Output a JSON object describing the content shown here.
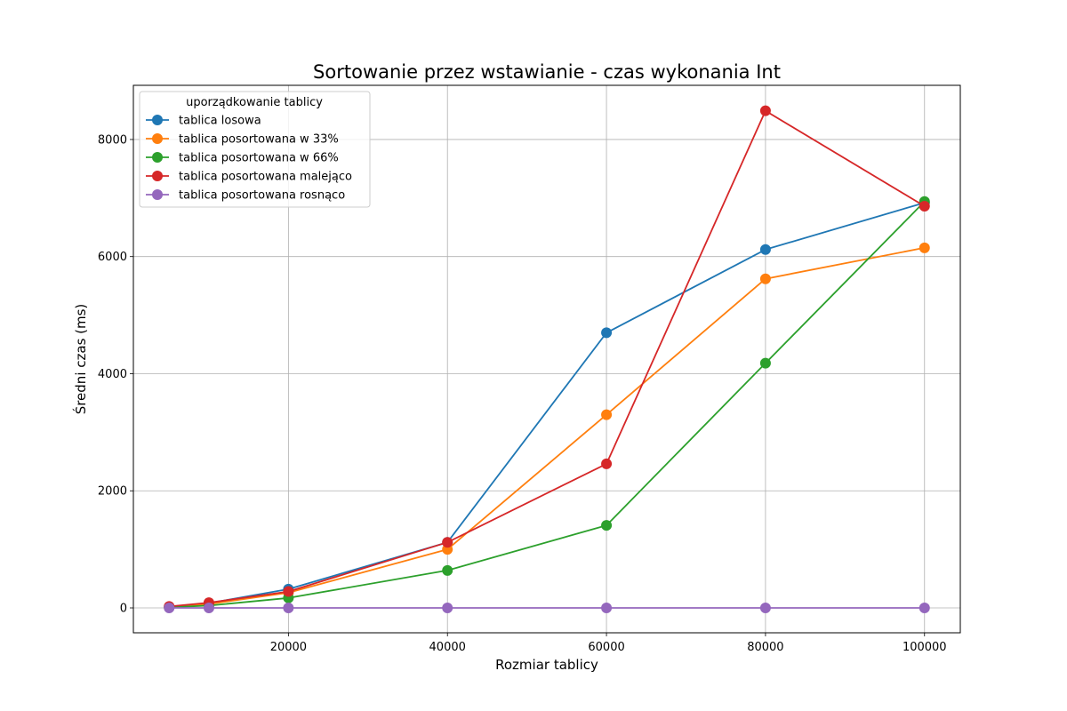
{
  "chart_data": {
    "type": "line",
    "title": "Sortowanie przez wstawianie - czas wykonania Int",
    "xlabel": "Rozmiar tablicy",
    "ylabel": "Średni czas (ms)",
    "x": [
      5000,
      10000,
      20000,
      40000,
      60000,
      80000,
      100000
    ],
    "xticks": [
      20000,
      40000,
      60000,
      80000,
      100000
    ],
    "yticks": [
      0,
      2000,
      4000,
      6000,
      8000
    ],
    "xlim": [
      500,
      104500
    ],
    "ylim": [
      -425,
      8925
    ],
    "grid": true,
    "legend_title": "uporządkowanie tablicy",
    "legend_position": "upper-left",
    "series": [
      {
        "name": "tablica losowa",
        "color": "#1f77b4",
        "values": [
          20,
          80,
          320,
          1120,
          4700,
          6120,
          6920
        ]
      },
      {
        "name": "tablica posortowana w 33%",
        "color": "#ff7f0e",
        "values": [
          15,
          65,
          260,
          1000,
          3300,
          5620,
          6150
        ]
      },
      {
        "name": "tablica posortowana w 66%",
        "color": "#2ca02c",
        "values": [
          10,
          40,
          170,
          640,
          1410,
          4180,
          6940
        ]
      },
      {
        "name": "tablica posortowana malejąco",
        "color": "#d62728",
        "values": [
          25,
          90,
          280,
          1120,
          2460,
          8490,
          6860
        ]
      },
      {
        "name": "tablica posortowana rosnąco",
        "color": "#9467bd",
        "values": [
          0,
          0,
          0,
          0,
          0,
          0,
          0
        ]
      }
    ]
  }
}
